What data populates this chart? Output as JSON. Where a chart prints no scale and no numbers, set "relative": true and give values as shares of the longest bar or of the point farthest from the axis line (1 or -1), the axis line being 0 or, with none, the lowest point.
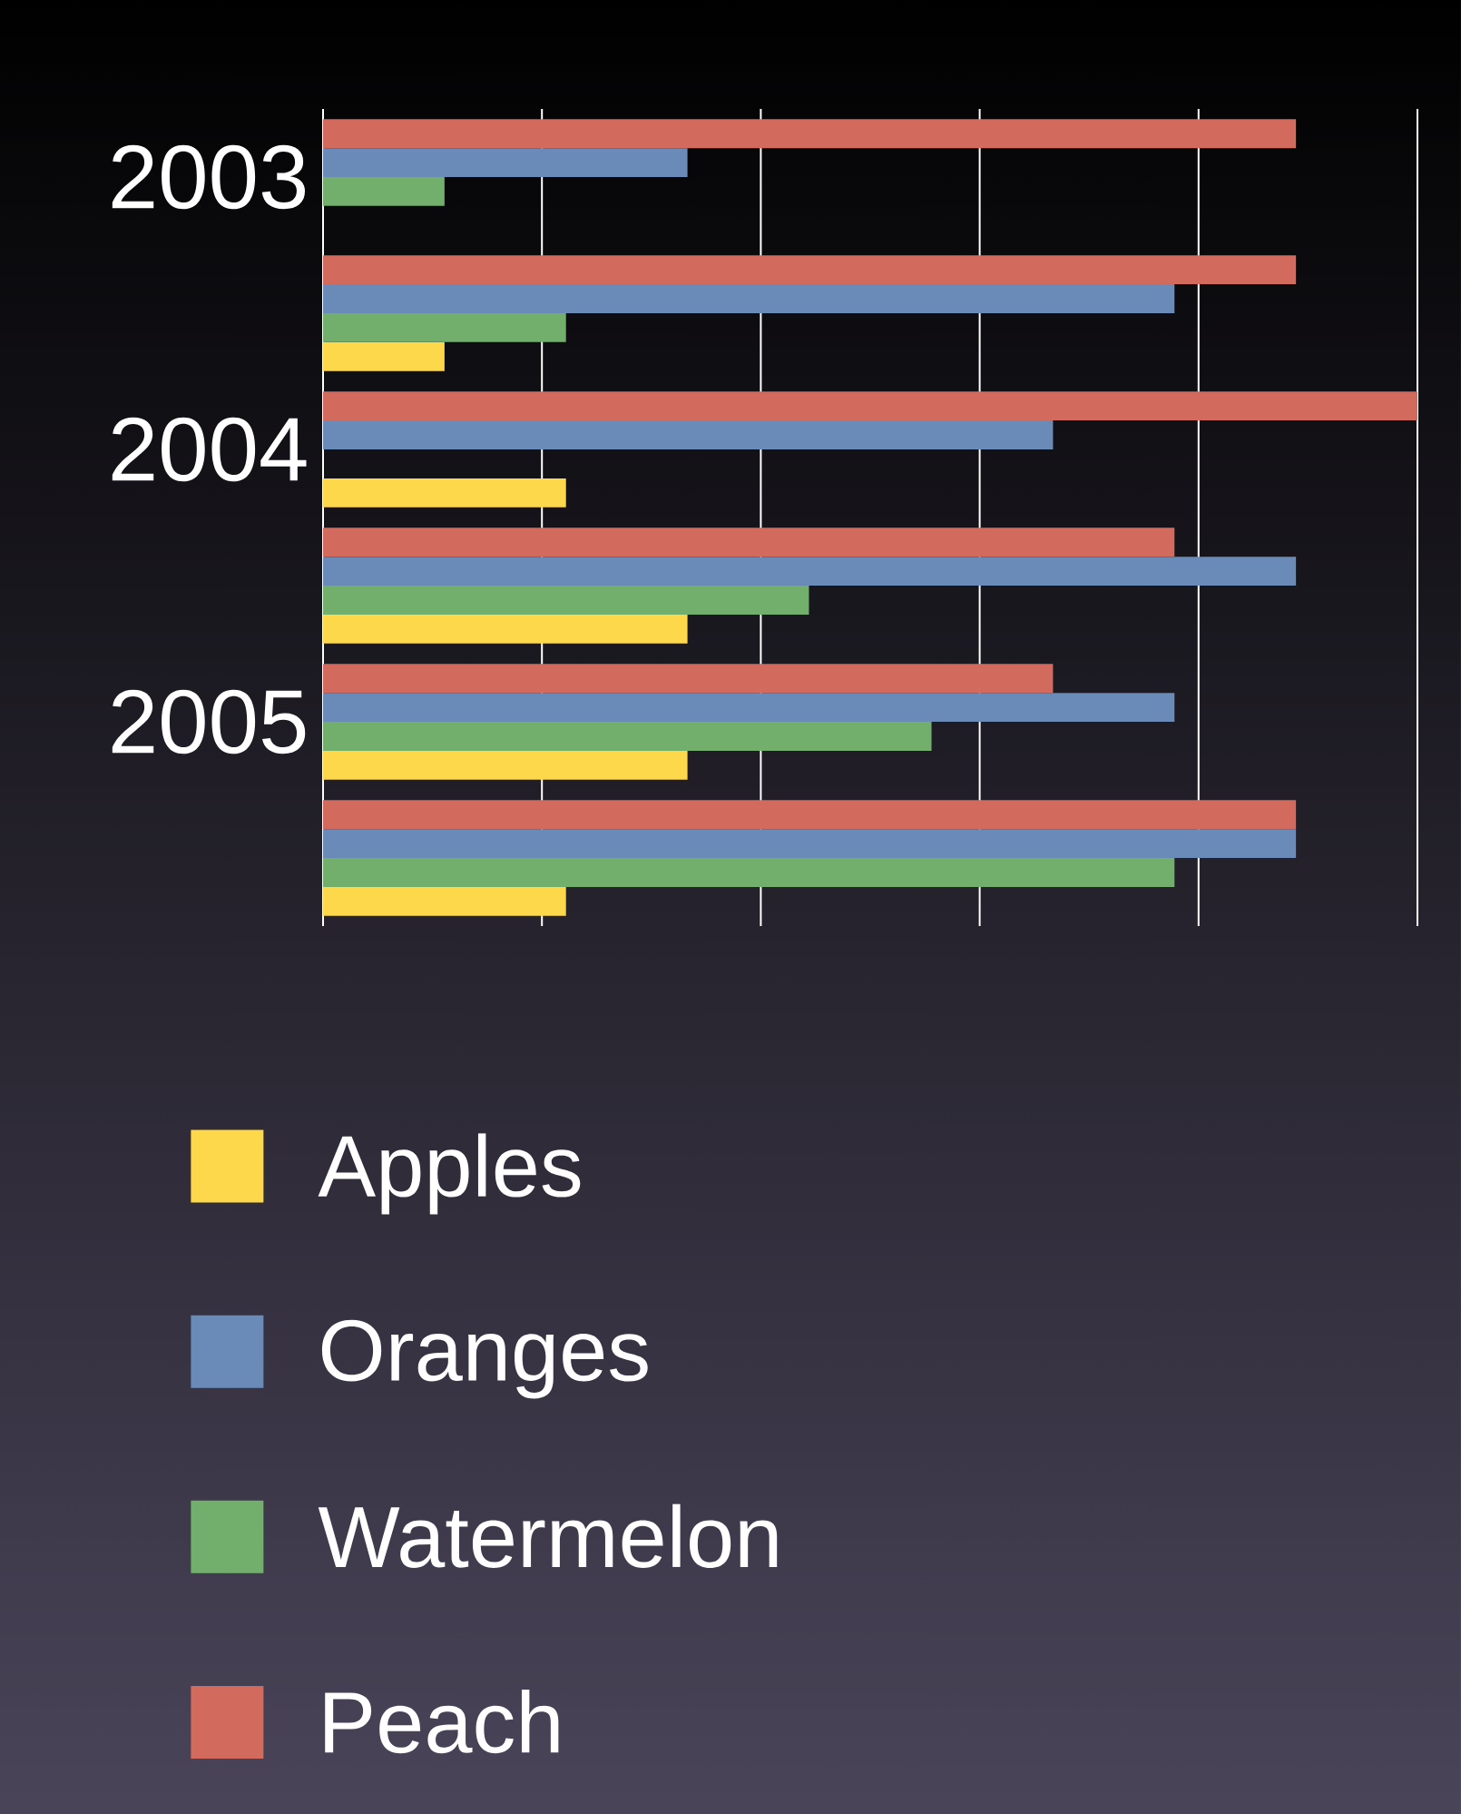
{
  "chart_data": {
    "type": "bar",
    "orientation": "horizontal",
    "relative": true,
    "grid": "x",
    "legend": "bottom",
    "tick_labels": "y",
    "categories": [
      "2003",
      null,
      "2004",
      null,
      "2005",
      null
    ],
    "series": [
      {
        "name": "Apples",
        "color": "#fdd84a",
        "values": [
          0,
          0.111,
          0.222,
          0.333,
          0.333,
          0.222
        ]
      },
      {
        "name": "Oranges",
        "color": "#6a8ab8",
        "values": [
          0.333,
          0.778,
          0.667,
          0.889,
          0.778,
          0.889
        ]
      },
      {
        "name": "Watermelon",
        "color": "#72ae6c",
        "values": [
          0.111,
          0.222,
          0,
          0.444,
          0.556,
          0.778
        ]
      },
      {
        "name": "Peach",
        "color": "#d26a5e",
        "values": [
          0.889,
          0.889,
          1,
          0.778,
          0.667,
          0.889
        ]
      }
    ]
  }
}
